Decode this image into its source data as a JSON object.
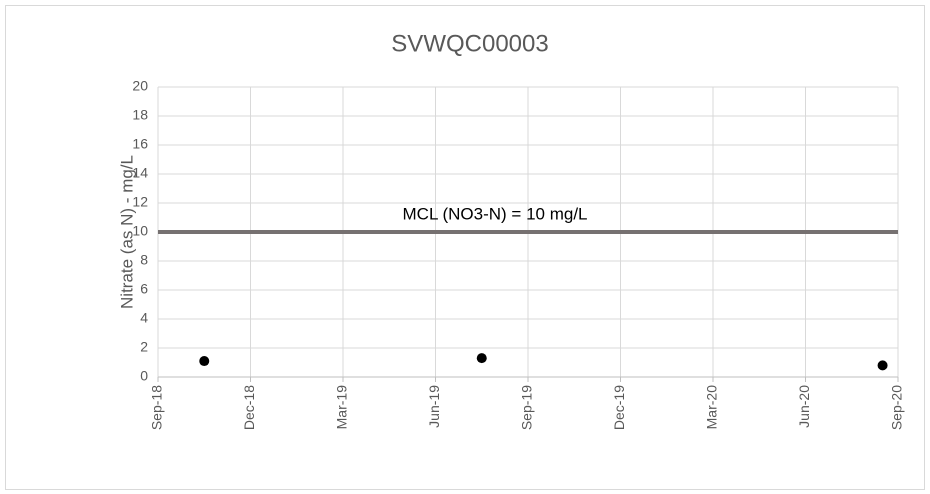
{
  "chart_data": {
    "type": "scatter",
    "title": "SVWQC00003",
    "y_label": "Nitrate (as N) - mg/L",
    "x": [
      "Oct-18",
      "Jul-19",
      "Aug-20"
    ],
    "series": [
      {
        "name": "Nitrate",
        "color": "#000000",
        "values": [
          1.1,
          1.3,
          0.8
        ]
      }
    ],
    "xlim": [
      "Sep-18",
      "Sep-20"
    ],
    "xticks": [
      "Sep-18",
      "Dec-18",
      "Mar-19",
      "Jun-19",
      "Sep-19",
      "Dec-19",
      "Mar-20",
      "Jun-20",
      "Sep-20"
    ],
    "ylim": [
      0,
      20
    ],
    "yticks": [
      0,
      2,
      4,
      6,
      8,
      10,
      12,
      14,
      16,
      18,
      20
    ],
    "grid": true,
    "reference_line": {
      "value": 10,
      "label": "MCL (NO3-N) = 10 mg/L",
      "color": "#767171"
    }
  }
}
